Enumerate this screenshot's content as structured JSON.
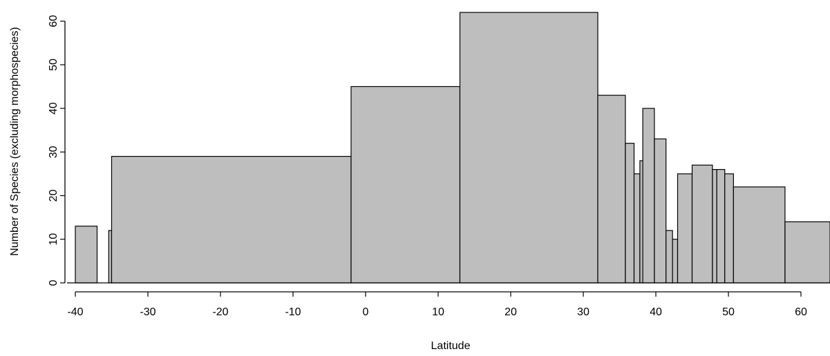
{
  "chart_data": {
    "type": "bar",
    "xlabel": "Latitude",
    "ylabel": "Number of Species (excluding morphospecies)",
    "xlim": [
      -40,
      64
    ],
    "ylim": [
      0,
      62
    ],
    "xticks": [
      -40,
      -30,
      -20,
      -10,
      0,
      10,
      20,
      30,
      40,
      50,
      60
    ],
    "yticks": [
      0,
      10,
      20,
      30,
      40,
      50,
      60
    ],
    "grid": false,
    "legend": "none",
    "bar_fill": "#bebebe",
    "bar_stroke": "#000000",
    "bars": [
      {
        "x0": -40.0,
        "x1": -37.0,
        "value": 13
      },
      {
        "x0": -35.4,
        "x1": -35.0,
        "value": 12
      },
      {
        "x0": -35.0,
        "x1": -2.0,
        "value": 29
      },
      {
        "x0": -2.0,
        "x1": 13.0,
        "value": 45
      },
      {
        "x0": 13.0,
        "x1": 32.0,
        "value": 62
      },
      {
        "x0": 32.0,
        "x1": 35.8,
        "value": 43
      },
      {
        "x0": 35.8,
        "x1": 37.0,
        "value": 32
      },
      {
        "x0": 37.0,
        "x1": 37.8,
        "value": 25
      },
      {
        "x0": 37.8,
        "x1": 38.2,
        "value": 28
      },
      {
        "x0": 38.2,
        "x1": 39.8,
        "value": 40
      },
      {
        "x0": 39.8,
        "x1": 41.4,
        "value": 33
      },
      {
        "x0": 41.4,
        "x1": 42.3,
        "value": 12
      },
      {
        "x0": 42.3,
        "x1": 43.0,
        "value": 10
      },
      {
        "x0": 43.0,
        "x1": 45.0,
        "value": 25
      },
      {
        "x0": 45.0,
        "x1": 47.8,
        "value": 27
      },
      {
        "x0": 47.8,
        "x1": 48.4,
        "value": 26
      },
      {
        "x0": 48.4,
        "x1": 49.5,
        "value": 26
      },
      {
        "x0": 49.5,
        "x1": 50.7,
        "value": 25
      },
      {
        "x0": 50.7,
        "x1": 57.8,
        "value": 22
      },
      {
        "x0": 57.8,
        "x1": 64.0,
        "value": 14
      }
    ]
  }
}
